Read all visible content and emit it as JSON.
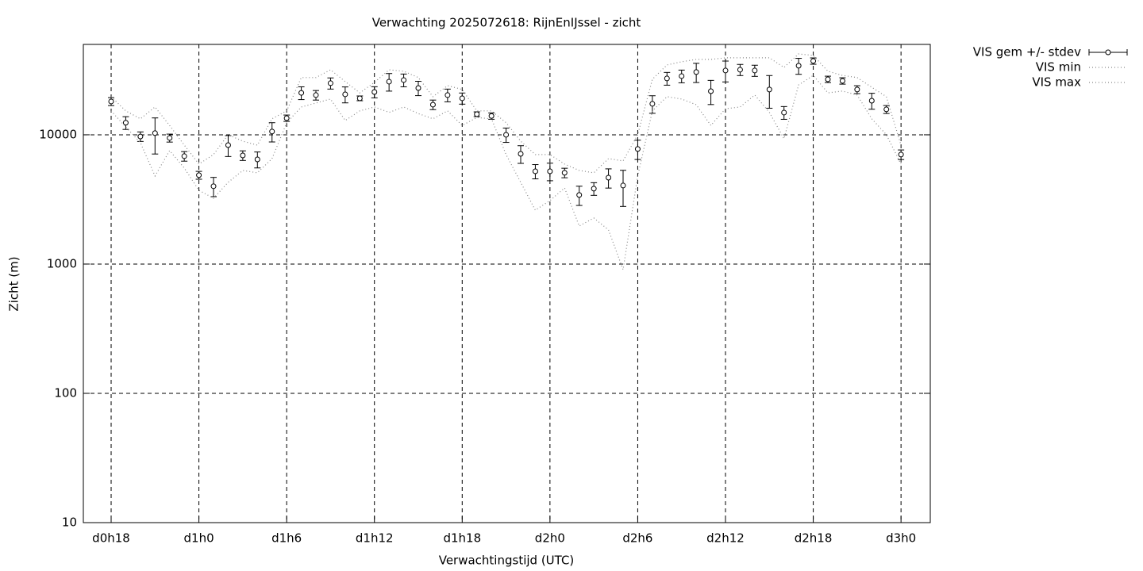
{
  "chart_data": {
    "type": "errorbar_line",
    "title": "Verwachting 2025072618: RijnEnIJssel - zicht",
    "x_label": "Verwachtingstijd (UTC)",
    "y_label": "Zicht (m)",
    "log_y": true,
    "grid": true,
    "legend_position": "outside-top-right",
    "xlim": [
      16.1,
      74
    ],
    "ylim": [
      10,
      50000
    ],
    "xticks": [
      {
        "value": 18,
        "label": "d0h18"
      },
      {
        "value": 24,
        "label": "d1h0"
      },
      {
        "value": 30,
        "label": "d1h6"
      },
      {
        "value": 36,
        "label": "d1h12"
      },
      {
        "value": 42,
        "label": "d1h18"
      },
      {
        "value": 48,
        "label": "d2h0"
      },
      {
        "value": 54,
        "label": "d2h6"
      },
      {
        "value": 60,
        "label": "d2h12"
      },
      {
        "value": 66,
        "label": "d2h18"
      },
      {
        "value": 72,
        "label": "d3h0"
      }
    ],
    "yticks": [
      10,
      100,
      1000,
      10000
    ],
    "x": [
      18,
      19,
      20,
      21,
      22,
      23,
      24,
      25,
      26,
      27,
      28,
      29,
      30,
      31,
      32,
      33,
      34,
      35,
      36,
      37,
      38,
      39,
      40,
      41,
      42,
      43,
      44,
      45,
      46,
      47,
      48,
      49,
      50,
      51,
      52,
      53,
      54,
      55,
      56,
      57,
      58,
      59,
      60,
      61,
      62,
      63,
      64,
      65,
      66,
      67,
      68,
      69,
      70,
      71,
      72
    ],
    "series": [
      {
        "name": "VIS gem +/- stdev",
        "color": "#000000",
        "style": "errorbars",
        "values": [
          18100,
          12400,
          9700,
          10300,
          9450,
          6830,
          4870,
          4000,
          8320,
          6920,
          6450,
          10600,
          13450,
          21100,
          20270,
          25050,
          20550,
          19150,
          21420,
          25760,
          26500,
          23000,
          17100,
          20270,
          19150,
          14430,
          13970,
          10000,
          7120,
          5220,
          5220,
          5080,
          3420,
          3830,
          4660,
          4050,
          7760,
          17350,
          27270,
          28440,
          30540,
          21740,
          31400,
          31850,
          31400,
          22380,
          14850,
          34190,
          37210,
          26870,
          26120,
          22380,
          18350,
          15720,
          7030
        ],
        "errors": [
          1280,
          1400,
          820,
          3200,
          670,
          580,
          340,
          680,
          1530,
          590,
          910,
          1800,
          760,
          2390,
          1720,
          2480,
          2900,
          810,
          2120,
          4000,
          3000,
          2920,
          1450,
          2290,
          1890,
          610,
          790,
          1270,
          1110,
          660,
          810,
          430,
          580,
          430,
          790,
          1260,
          1320,
          2690,
          3080,
          3210,
          5180,
          4610,
          5770,
          3150,
          3110,
          6330,
          1680,
          4830,
          2100,
          1520,
          1480,
          1580,
          2590,
          1110,
          600
        ]
      },
      {
        "name": "VIS min",
        "color": "#888888",
        "style": "dotted",
        "values": [
          15300,
          11500,
          8690,
          4800,
          7540,
          5530,
          3720,
          3230,
          4290,
          5300,
          5080,
          6540,
          12400,
          16400,
          17600,
          18900,
          12900,
          15300,
          16400,
          14900,
          16400,
          14600,
          13300,
          15300,
          11800,
          13600,
          13300,
          7030,
          4290,
          2610,
          3100,
          3880,
          1970,
          2270,
          1840,
          906,
          4800,
          15300,
          19700,
          18900,
          17100,
          11800,
          15900,
          16400,
          20300,
          14900,
          9320,
          24300,
          28800,
          21100,
          21800,
          20300,
          13300,
          10000,
          5930
        ]
      },
      {
        "name": "VIS max",
        "color": "#888888",
        "style": "dotted",
        "values": [
          19700,
          15300,
          13300,
          16400,
          11800,
          8320,
          5930,
          7030,
          10000,
          8930,
          8320,
          13300,
          15300,
          27700,
          27700,
          31800,
          25800,
          21100,
          25400,
          31800,
          31000,
          27700,
          19700,
          24000,
          22400,
          15300,
          15300,
          12400,
          8930,
          7030,
          7030,
          5930,
          5300,
          5080,
          6540,
          6280,
          10000,
          26900,
          34700,
          36700,
          38300,
          38300,
          39400,
          39400,
          39400,
          39400,
          33200,
          42200,
          41100,
          31000,
          28800,
          27700,
          23300,
          19700,
          8320
        ]
      }
    ]
  }
}
